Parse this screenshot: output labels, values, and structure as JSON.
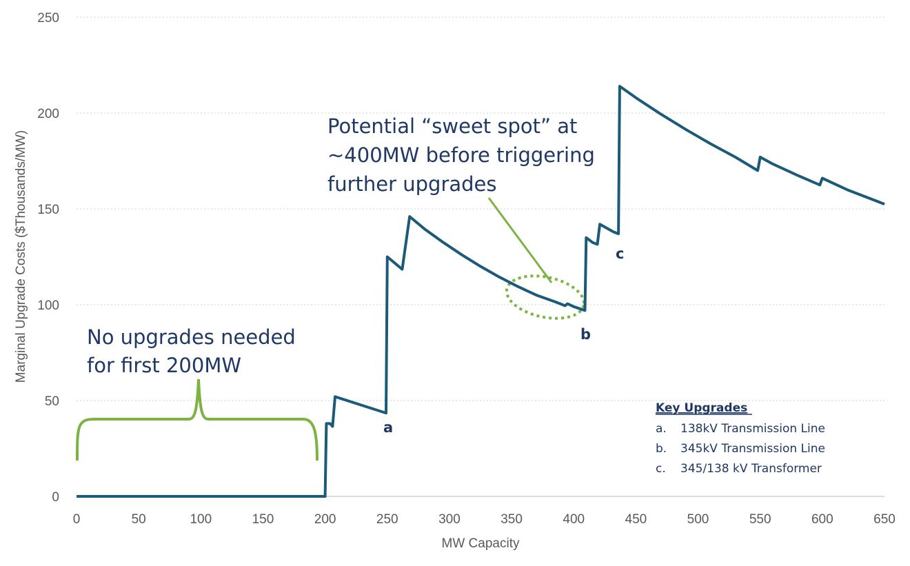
{
  "chart_data": {
    "type": "line",
    "title": "",
    "xlabel": "MW Capacity",
    "ylabel": "Marginal Upgrade Costs ($Thousands/MW)",
    "xlim": [
      0,
      650
    ],
    "ylim": [
      0,
      250
    ],
    "x_ticks": [
      "0",
      "50",
      "100",
      "150",
      "200",
      "250",
      "300",
      "350",
      "400",
      "450",
      "500",
      "550",
      "600",
      "650"
    ],
    "y_ticks": [
      "0",
      "50",
      "100",
      "150",
      "200",
      "250"
    ],
    "grid": "horizontal dotted",
    "series": [
      {
        "color": "#1b5a78",
        "points": [
          [
            0,
            0
          ],
          [
            200,
            0
          ],
          [
            201,
            38
          ],
          [
            204,
            38
          ],
          [
            206,
            36.5
          ],
          [
            208,
            52
          ],
          [
            249,
            43.5
          ],
          [
            250,
            125
          ],
          [
            262,
            118.5
          ],
          [
            268,
            146
          ],
          [
            280,
            139.5
          ],
          [
            295,
            132.5
          ],
          [
            310,
            126
          ],
          [
            325,
            120
          ],
          [
            340,
            114.5
          ],
          [
            355,
            109.5
          ],
          [
            370,
            105
          ],
          [
            385,
            101.5
          ],
          [
            393,
            99.5
          ],
          [
            395,
            100.5
          ],
          [
            400,
            99
          ],
          [
            409,
            97
          ],
          [
            410,
            135
          ],
          [
            415,
            132.5
          ],
          [
            419,
            131.5
          ],
          [
            421,
            142
          ],
          [
            432,
            138
          ],
          [
            436,
            137
          ],
          [
            437,
            214
          ],
          [
            450,
            208
          ],
          [
            470,
            199.5
          ],
          [
            490,
            191.5
          ],
          [
            510,
            184
          ],
          [
            530,
            177
          ],
          [
            548,
            170
          ],
          [
            550,
            177
          ],
          [
            560,
            173.5
          ],
          [
            580,
            167.5
          ],
          [
            598,
            162.5
          ],
          [
            600,
            166
          ],
          [
            620,
            160
          ],
          [
            640,
            155
          ],
          [
            650,
            152.5
          ]
        ]
      }
    ],
    "annotations": {
      "no_upgrades_line1": "No upgrades needed",
      "no_upgrades_line2": "for first 200MW",
      "sweet_spot_line1": "Potential “sweet spot” at",
      "sweet_spot_line2": "~400MW before triggering",
      "sweet_spot_line3": "further upgrades",
      "label_a": "a",
      "label_b": "b",
      "label_c": "c"
    },
    "key": {
      "title": "Key Upgrades",
      "items": [
        {
          "letter": "a.",
          "text": "138kV Transmission Line"
        },
        {
          "letter": "b.",
          "text": "345kV Transmission Line"
        },
        {
          "letter": "c.",
          "text": "345/138 kV Transformer"
        }
      ]
    },
    "colors": {
      "line": "#1b5a78",
      "annotation_text": "#1f3864",
      "highlight": "#7cb342",
      "grid": "#cfcfcf",
      "axis_text": "#595959"
    }
  }
}
